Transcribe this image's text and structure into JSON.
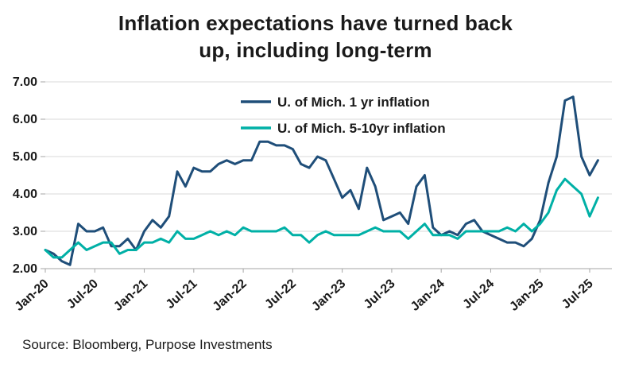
{
  "title_lines": [
    "Inflation expectations have turned back",
    "up, including long-term"
  ],
  "source": "Source: Bloomberg, Purpose Investments",
  "colors": {
    "series1": "#1f4e79",
    "series2": "#00b0a6",
    "grid": "#d9d9d9",
    "axis": "#a6a6a6",
    "tick_text": "#1a1a1a",
    "legend_text": "#1a1a1a"
  },
  "chart_data": {
    "type": "line",
    "title": "Inflation expectations have turned back up, including long-term",
    "xlabel": "",
    "ylabel": "",
    "ylim": [
      2.0,
      7.0
    ],
    "y_ticks": [
      2.0,
      3.0,
      4.0,
      5.0,
      6.0,
      7.0
    ],
    "y_tick_labels": [
      "2.00",
      "3.00",
      "4.00",
      "5.00",
      "6.00",
      "7.00"
    ],
    "grid": "horizontal",
    "legend_position": "top-center-inside",
    "x_unit": "month",
    "x_tick_labels": [
      "Jan-20",
      "Jul-20",
      "Jan-21",
      "Jul-21",
      "Jan-22",
      "Jul-22",
      "Jan-23",
      "Jul-23",
      "Jan-24",
      "Jul-24",
      "Jan-25",
      "Jul-25"
    ],
    "x_tick_indices": [
      0,
      6,
      12,
      18,
      24,
      30,
      36,
      42,
      48,
      54,
      60,
      66
    ],
    "series": [
      {
        "name": "U. of Mich. 1 yr inflation",
        "color": "#1f4e79",
        "values": [
          2.5,
          2.4,
          2.2,
          2.1,
          3.2,
          3.0,
          3.0,
          3.1,
          2.6,
          2.6,
          2.8,
          2.5,
          3.0,
          3.3,
          3.1,
          3.4,
          4.6,
          4.2,
          4.7,
          4.6,
          4.6,
          4.8,
          4.9,
          4.8,
          4.9,
          4.9,
          5.4,
          5.4,
          5.3,
          5.3,
          5.2,
          4.8,
          4.7,
          5.0,
          4.9,
          4.4,
          3.9,
          4.1,
          3.6,
          4.7,
          4.2,
          3.3,
          3.4,
          3.5,
          3.2,
          4.2,
          4.5,
          3.1,
          2.9,
          3.0,
          2.9,
          3.2,
          3.3,
          3.0,
          2.9,
          2.8,
          2.7,
          2.7,
          2.6,
          2.8,
          3.3,
          4.3,
          5.0,
          6.5,
          6.6,
          5.0,
          4.5,
          4.9
        ]
      },
      {
        "name": "U. of Mich. 5-10yr inflation",
        "color": "#00b0a6",
        "values": [
          2.5,
          2.3,
          2.3,
          2.5,
          2.7,
          2.5,
          2.6,
          2.7,
          2.7,
          2.4,
          2.5,
          2.5,
          2.7,
          2.7,
          2.8,
          2.7,
          3.0,
          2.8,
          2.8,
          2.9,
          3.0,
          2.9,
          3.0,
          2.9,
          3.1,
          3.0,
          3.0,
          3.0,
          3.0,
          3.1,
          2.9,
          2.9,
          2.7,
          2.9,
          3.0,
          2.9,
          2.9,
          2.9,
          2.9,
          3.0,
          3.1,
          3.0,
          3.0,
          3.0,
          2.8,
          3.0,
          3.2,
          2.9,
          2.9,
          2.9,
          2.8,
          3.0,
          3.0,
          3.0,
          3.0,
          3.0,
          3.1,
          3.0,
          3.2,
          3.0,
          3.2,
          3.5,
          4.1,
          4.4,
          4.2,
          4.0,
          3.4,
          3.9
        ]
      }
    ]
  }
}
